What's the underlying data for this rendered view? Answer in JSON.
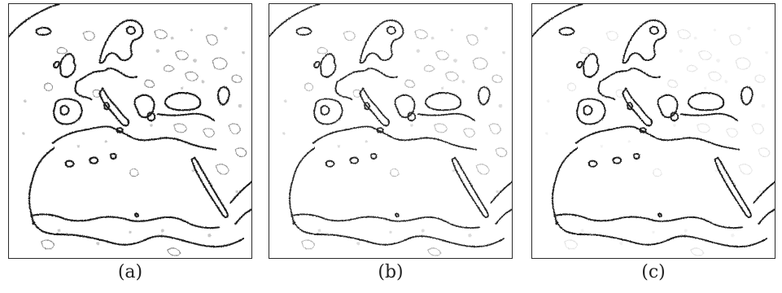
{
  "panels": [
    {
      "label": "(a)",
      "noise_level": 1.0,
      "coast_color": "#1a1a1a"
    },
    {
      "label": "(b)",
      "noise_level": 0.65,
      "coast_color": "#262626"
    },
    {
      "label": "(c)",
      "noise_level": 0.25,
      "coast_color": "#1f1f1f"
    }
  ]
}
